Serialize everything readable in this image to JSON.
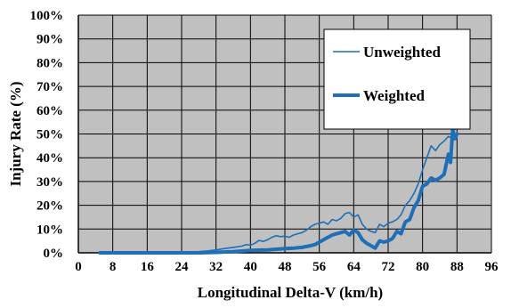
{
  "chart_data": {
    "type": "line",
    "title": "",
    "xlabel": "Longitudinal Delta-V (km/h)",
    "ylabel": "Injury Rate (%)",
    "xlim": [
      0,
      96
    ],
    "ylim": [
      0,
      100
    ],
    "x_ticks": [
      "0",
      "8",
      "16",
      "24",
      "32",
      "40",
      "48",
      "56",
      "64",
      "72",
      "80",
      "88",
      "96"
    ],
    "y_ticks": [
      "0%",
      "10%",
      "20%",
      "30%",
      "40%",
      "50%",
      "60%",
      "70%",
      "80%",
      "90%",
      "100%"
    ],
    "grid": true,
    "plot_background": "#c0c0c0",
    "legend_position": "top-right",
    "series": [
      {
        "name": "Unweighted",
        "color": "#1f6fb8",
        "style": "thin",
        "x": [
          5,
          8,
          12,
          16,
          20,
          24,
          26,
          28,
          30,
          32,
          34,
          36,
          38,
          39,
          40,
          41,
          42,
          43,
          44,
          45,
          46,
          47,
          48,
          49,
          50,
          51,
          52,
          53,
          54,
          55,
          56,
          57,
          58,
          59,
          60,
          61,
          62,
          63,
          64,
          65,
          66,
          67,
          68,
          69,
          70,
          71,
          72,
          73,
          74,
          75,
          76,
          77,
          78,
          79,
          80,
          81,
          82,
          83,
          84,
          85,
          86,
          87,
          88
        ],
        "values": [
          0,
          0,
          0,
          0,
          0,
          0.1,
          0.2,
          0.5,
          0.8,
          1.2,
          1.8,
          2.3,
          2.8,
          3.5,
          3.2,
          4.0,
          5.2,
          4.8,
          5.5,
          6.5,
          7.2,
          6.8,
          7.0,
          6.5,
          7.5,
          8.0,
          8.5,
          9.5,
          11.0,
          12.0,
          12.5,
          13.0,
          12.0,
          14.0,
          13.5,
          14.5,
          16.5,
          17.0,
          15.0,
          16.0,
          12.0,
          10.0,
          9.0,
          8.5,
          12.0,
          11.0,
          12.5,
          13.0,
          14.0,
          16.0,
          20.0,
          22.0,
          25.0,
          29.0,
          35.0,
          40.0,
          45.0,
          43.0,
          45.5,
          47.0,
          49.0,
          48.0,
          57.0
        ]
      },
      {
        "name": "Weighted",
        "color": "#1f6fb8",
        "style": "thick",
        "x": [
          5,
          8,
          12,
          16,
          20,
          24,
          28,
          32,
          36,
          40,
          44,
          48,
          50,
          52,
          54,
          55,
          56,
          57,
          58,
          59,
          60,
          61,
          62,
          63,
          64,
          65,
          66,
          67,
          68,
          69,
          70,
          71,
          72,
          73,
          74,
          75,
          76,
          77,
          78,
          79,
          80,
          81,
          82,
          83,
          84,
          85,
          86,
          86.5,
          87,
          87.5,
          88
        ],
        "values": [
          0,
          0,
          0,
          0,
          0,
          0,
          0,
          0.2,
          0.5,
          1.0,
          1.2,
          1.8,
          2.0,
          2.3,
          3.0,
          3.5,
          4.5,
          5.5,
          6.5,
          7.5,
          8.0,
          8.5,
          9.0,
          7.5,
          9.5,
          8.5,
          5.5,
          4.0,
          3.0,
          2.0,
          5.0,
          4.5,
          5.0,
          6.0,
          9.0,
          8.0,
          13.0,
          14.0,
          19.0,
          22.0,
          28.0,
          29.0,
          31.5,
          30.5,
          31.5,
          33.0,
          41.5,
          38.0,
          52.0,
          48.0,
          50.0
        ]
      }
    ]
  }
}
